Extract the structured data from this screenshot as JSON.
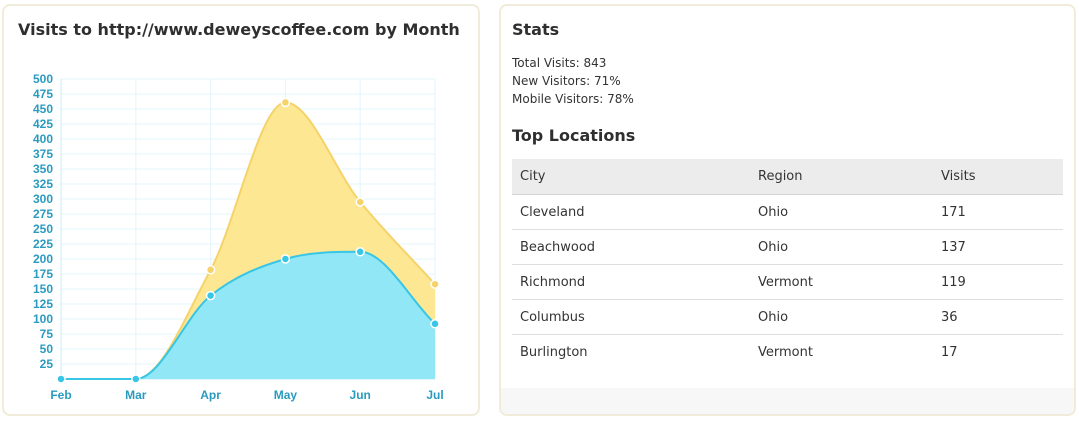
{
  "chart_card": {
    "title": "Visits to http://www.deweyscoffee.com by Month"
  },
  "chart_data": {
    "type": "area",
    "title": "Visits to http://www.deweyscoffee.com by Month",
    "categories": [
      "Feb",
      "Mar",
      "Apr",
      "May",
      "Jun",
      "Jul"
    ],
    "ylim": [
      0,
      500
    ],
    "yticks": [
      25,
      50,
      75,
      100,
      125,
      150,
      175,
      200,
      225,
      250,
      275,
      300,
      325,
      350,
      375,
      400,
      425,
      450,
      475,
      500
    ],
    "grid": true,
    "series": [
      {
        "values": [
          0,
          0,
          182,
          461,
          295,
          158
        ],
        "color": "#fde68c",
        "stroke": "#f5d36a"
      },
      {
        "values": [
          0,
          0,
          139,
          200,
          212,
          92
        ],
        "color": "#8be7fb",
        "stroke": "#38c6e6"
      }
    ]
  },
  "stats": {
    "title": "Stats",
    "total_visits": "Total Visits: 843",
    "new_visitors": "New Visitors: 71%",
    "mobile_visitors": "Mobile Visitors: 78%"
  },
  "locations": {
    "title": "Top Locations",
    "headers": {
      "city": "City",
      "region": "Region",
      "visits": "Visits"
    },
    "rows": [
      {
        "city": "Cleveland",
        "region": "Ohio",
        "visits": "171"
      },
      {
        "city": "Beachwood",
        "region": "Ohio",
        "visits": "137"
      },
      {
        "city": "Richmond",
        "region": "Vermont",
        "visits": "119"
      },
      {
        "city": "Columbus",
        "region": "Ohio",
        "visits": "36"
      },
      {
        "city": "Burlington",
        "region": "Vermont",
        "visits": "17"
      }
    ]
  }
}
